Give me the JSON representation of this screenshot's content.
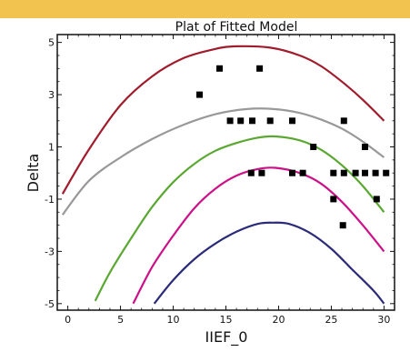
{
  "top_band_color": "#f2c44f",
  "chart_data": {
    "type": "scatter",
    "title": "Plat of Fitted Model",
    "xlabel": "IIEF_0",
    "ylabel": "Delta",
    "xlim": [
      -1,
      31
    ],
    "ylim": [
      -5.25,
      5.3
    ],
    "x_ticks": [
      0,
      5,
      10,
      15,
      20,
      25,
      30
    ],
    "y_ticks": [
      5,
      3,
      1,
      -1,
      -3,
      -5
    ],
    "grid": false,
    "legend": "none",
    "points": [
      {
        "x": 12.5,
        "y": 3
      },
      {
        "x": 14.4,
        "y": 4
      },
      {
        "x": 18.2,
        "y": 4
      },
      {
        "x": 15.4,
        "y": 2
      },
      {
        "x": 16.4,
        "y": 2
      },
      {
        "x": 17.5,
        "y": 2
      },
      {
        "x": 19.2,
        "y": 2
      },
      {
        "x": 21.3,
        "y": 2
      },
      {
        "x": 26.2,
        "y": 2
      },
      {
        "x": 23.3,
        "y": 1
      },
      {
        "x": 28.2,
        "y": 1
      },
      {
        "x": 17.4,
        "y": 0
      },
      {
        "x": 18.4,
        "y": 0
      },
      {
        "x": 21.3,
        "y": 0
      },
      {
        "x": 22.3,
        "y": 0
      },
      {
        "x": 25.2,
        "y": 0
      },
      {
        "x": 26.2,
        "y": 0
      },
      {
        "x": 27.3,
        "y": 0
      },
      {
        "x": 28.2,
        "y": 0
      },
      {
        "x": 29.2,
        "y": 0
      },
      {
        "x": 30.2,
        "y": 0
      },
      {
        "x": 25.2,
        "y": -1
      },
      {
        "x": 29.3,
        "y": -1
      },
      {
        "x": 26.1,
        "y": -2
      }
    ],
    "curves": [
      {
        "color": "#a01c2c",
        "points": [
          [
            -0.5,
            -0.8
          ],
          [
            2,
            0.9
          ],
          [
            5,
            2.6
          ],
          [
            8,
            3.7
          ],
          [
            11,
            4.4
          ],
          [
            14,
            4.75
          ],
          [
            16,
            4.85
          ],
          [
            19.2,
            4.8
          ],
          [
            22,
            4.5
          ],
          [
            24,
            4.1
          ],
          [
            26,
            3.5
          ],
          [
            28,
            2.8
          ],
          [
            30,
            2.0
          ]
        ]
      },
      {
        "color": "#999999",
        "points": [
          [
            -0.5,
            -1.6
          ],
          [
            2,
            -0.3
          ],
          [
            5,
            0.6
          ],
          [
            8,
            1.3
          ],
          [
            11,
            1.85
          ],
          [
            14,
            2.25
          ],
          [
            17,
            2.45
          ],
          [
            19.5,
            2.45
          ],
          [
            22,
            2.3
          ],
          [
            24,
            2.05
          ],
          [
            26,
            1.7
          ],
          [
            28,
            1.2
          ],
          [
            30,
            0.6
          ]
        ]
      },
      {
        "color": "#5aa832",
        "points": [
          [
            2.6,
            -4.9
          ],
          [
            4,
            -3.8
          ],
          [
            6,
            -2.5
          ],
          [
            8,
            -1.3
          ],
          [
            10,
            -0.35
          ],
          [
            12,
            0.35
          ],
          [
            14,
            0.85
          ],
          [
            16,
            1.15
          ],
          [
            18,
            1.35
          ],
          [
            19.7,
            1.4
          ],
          [
            22,
            1.25
          ],
          [
            24,
            0.9
          ],
          [
            26,
            0.3
          ],
          [
            28,
            -0.5
          ],
          [
            30,
            -1.5
          ]
        ]
      },
      {
        "color": "#cc1188",
        "points": [
          [
            6.2,
            -5.0
          ],
          [
            8,
            -3.6
          ],
          [
            10,
            -2.4
          ],
          [
            12,
            -1.35
          ],
          [
            14,
            -0.6
          ],
          [
            16,
            -0.1
          ],
          [
            18,
            0.15
          ],
          [
            19.7,
            0.2
          ],
          [
            22,
            0.0
          ],
          [
            24,
            -0.4
          ],
          [
            26,
            -1.1
          ],
          [
            28,
            -2.0
          ],
          [
            30,
            -3.0
          ]
        ]
      },
      {
        "color": "#2b2b7a",
        "points": [
          [
            8.2,
            -5.0
          ],
          [
            10,
            -4.1
          ],
          [
            12,
            -3.3
          ],
          [
            14,
            -2.7
          ],
          [
            16,
            -2.25
          ],
          [
            18,
            -1.95
          ],
          [
            19.5,
            -1.9
          ],
          [
            21,
            -1.95
          ],
          [
            23,
            -2.3
          ],
          [
            25,
            -2.9
          ],
          [
            27,
            -3.7
          ],
          [
            29,
            -4.5
          ],
          [
            30,
            -5.0
          ]
        ]
      }
    ]
  }
}
